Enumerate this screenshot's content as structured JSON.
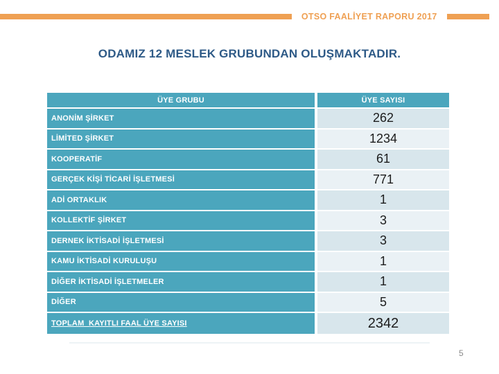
{
  "header": {
    "report_title": "OTSO FAALİYET RAPORU 2017"
  },
  "title": "ODAMIZ 12 MESLEK GRUBUNDAN OLUŞMAKTADIR.",
  "table": {
    "columns": {
      "group": "ÜYE GRUBU",
      "count": "ÜYE SAYISI"
    },
    "rows": [
      {
        "group": "ANONİM ŞİRKET",
        "count": "262"
      },
      {
        "group": "LİMİTED ŞİRKET",
        "count": "1234"
      },
      {
        "group": "KOOPERATİF",
        "count": "61"
      },
      {
        "group": "GERÇEK KİŞİ TİCARİ İŞLETMESİ",
        "count": "771"
      },
      {
        "group": "ADİ ORTAKLIK",
        "count": "1"
      },
      {
        "group": "KOLLEKTİF ŞİRKET",
        "count": "3"
      },
      {
        "group": "DERNEK İKTİSADİ İŞLETMESİ",
        "count": "3"
      },
      {
        "group": "KAMU İKTİSADİ KURULUŞU",
        "count": "1"
      },
      {
        "group": "DİĞER İKTİSADİ İŞLETMELER",
        "count": "1"
      },
      {
        "group": "DİĞER",
        "count": "5"
      },
      {
        "group": "TOPLAM  KAYITLI FAAL ÜYE SAYISI",
        "count": "2342",
        "underline": true
      }
    ]
  },
  "page_number": "5",
  "colors": {
    "teal": "#4BA6BD",
    "row-dark": "#D8E6EC",
    "row-light": "#EAF1F5",
    "orange": "#EFA053",
    "title-blue": "#2E5A87",
    "num-color": "#1C1C1C",
    "page-num-color": "#8A8A8A"
  }
}
